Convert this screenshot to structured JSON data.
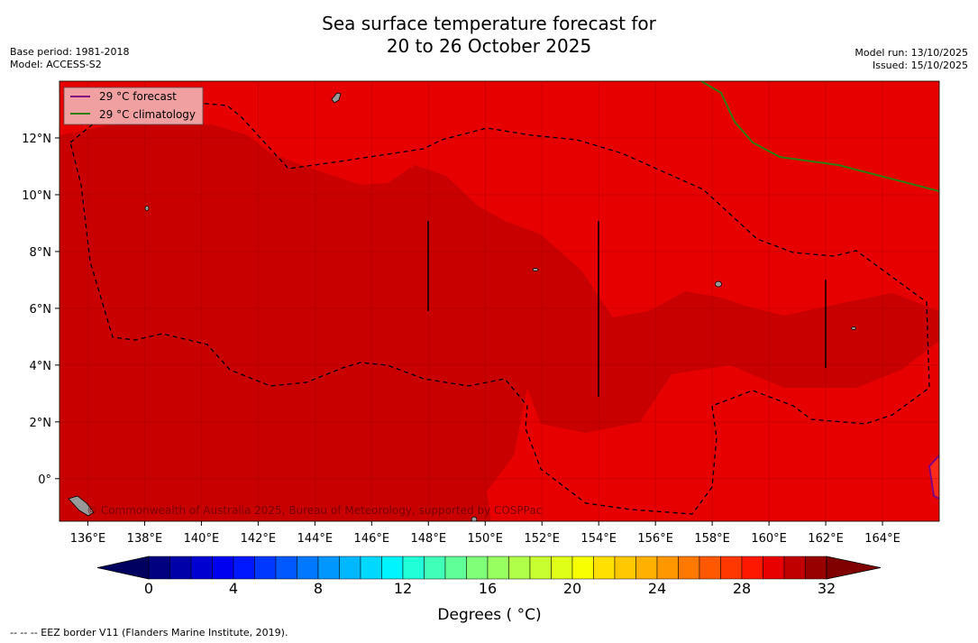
{
  "title_line1": "Sea surface temperature forecast for",
  "title_line2": "20 to 26 October 2025",
  "base_period": "Base period: 1981-2018",
  "model": "Model: ACCESS-S2",
  "model_run": "Model run: 13/10/2025",
  "issued": "Issued: 15/10/2025",
  "legend": {
    "forecast_label": "29 °C  forecast",
    "climatology_label": "29 °C  climatology",
    "forecast_color": "#800080",
    "climatology_color": "#2e7d10"
  },
  "copyright": "© Commonwealth of Australia 2025, Bureau of Meteorology, supported by COSPPac",
  "footer": "--  --  -- EEZ border V11 (Flanders Marine Institute, 2019).",
  "map": {
    "lon_range": [
      135,
      166
    ],
    "lat_range": [
      -1.5,
      14
    ],
    "lon_ticks": [
      "136°E",
      "138°E",
      "140°E",
      "142°E",
      "144°E",
      "146°E",
      "148°E",
      "150°E",
      "152°E",
      "154°E",
      "156°E",
      "158°E",
      "160°E",
      "162°E",
      "164°E"
    ],
    "lat_ticks": [
      "12°N",
      "10°N",
      "8°N",
      "6°N",
      "4°N",
      "2°N",
      "0°"
    ],
    "colors": {
      "warm_30": "#e60000",
      "warm_31": "#c80000",
      "warm_29": "#ff2a1a",
      "land": "#999999"
    }
  },
  "colorbar": {
    "title": "Degrees ( °C)",
    "tick_labels": [
      "0",
      "4",
      "8",
      "12",
      "16",
      "20",
      "24",
      "28",
      "32"
    ],
    "range": [
      0,
      32
    ],
    "step": 1,
    "colors": [
      "#000080",
      "#0000a8",
      "#0000d0",
      "#0000f0",
      "#0018ff",
      "#0038ff",
      "#0058ff",
      "#0078ff",
      "#0098ff",
      "#00b8ff",
      "#00d8ff",
      "#00f4ff",
      "#20ffd8",
      "#40ffb8",
      "#60ff98",
      "#80ff78",
      "#98ff60",
      "#b0ff48",
      "#c8ff30",
      "#e0ff18",
      "#f8ff00",
      "#ffe000",
      "#ffc800",
      "#ffb000",
      "#ff9800",
      "#ff7800",
      "#ff5800",
      "#ff3800",
      "#ff1800",
      "#e80000",
      "#c00000",
      "#980000"
    ]
  }
}
